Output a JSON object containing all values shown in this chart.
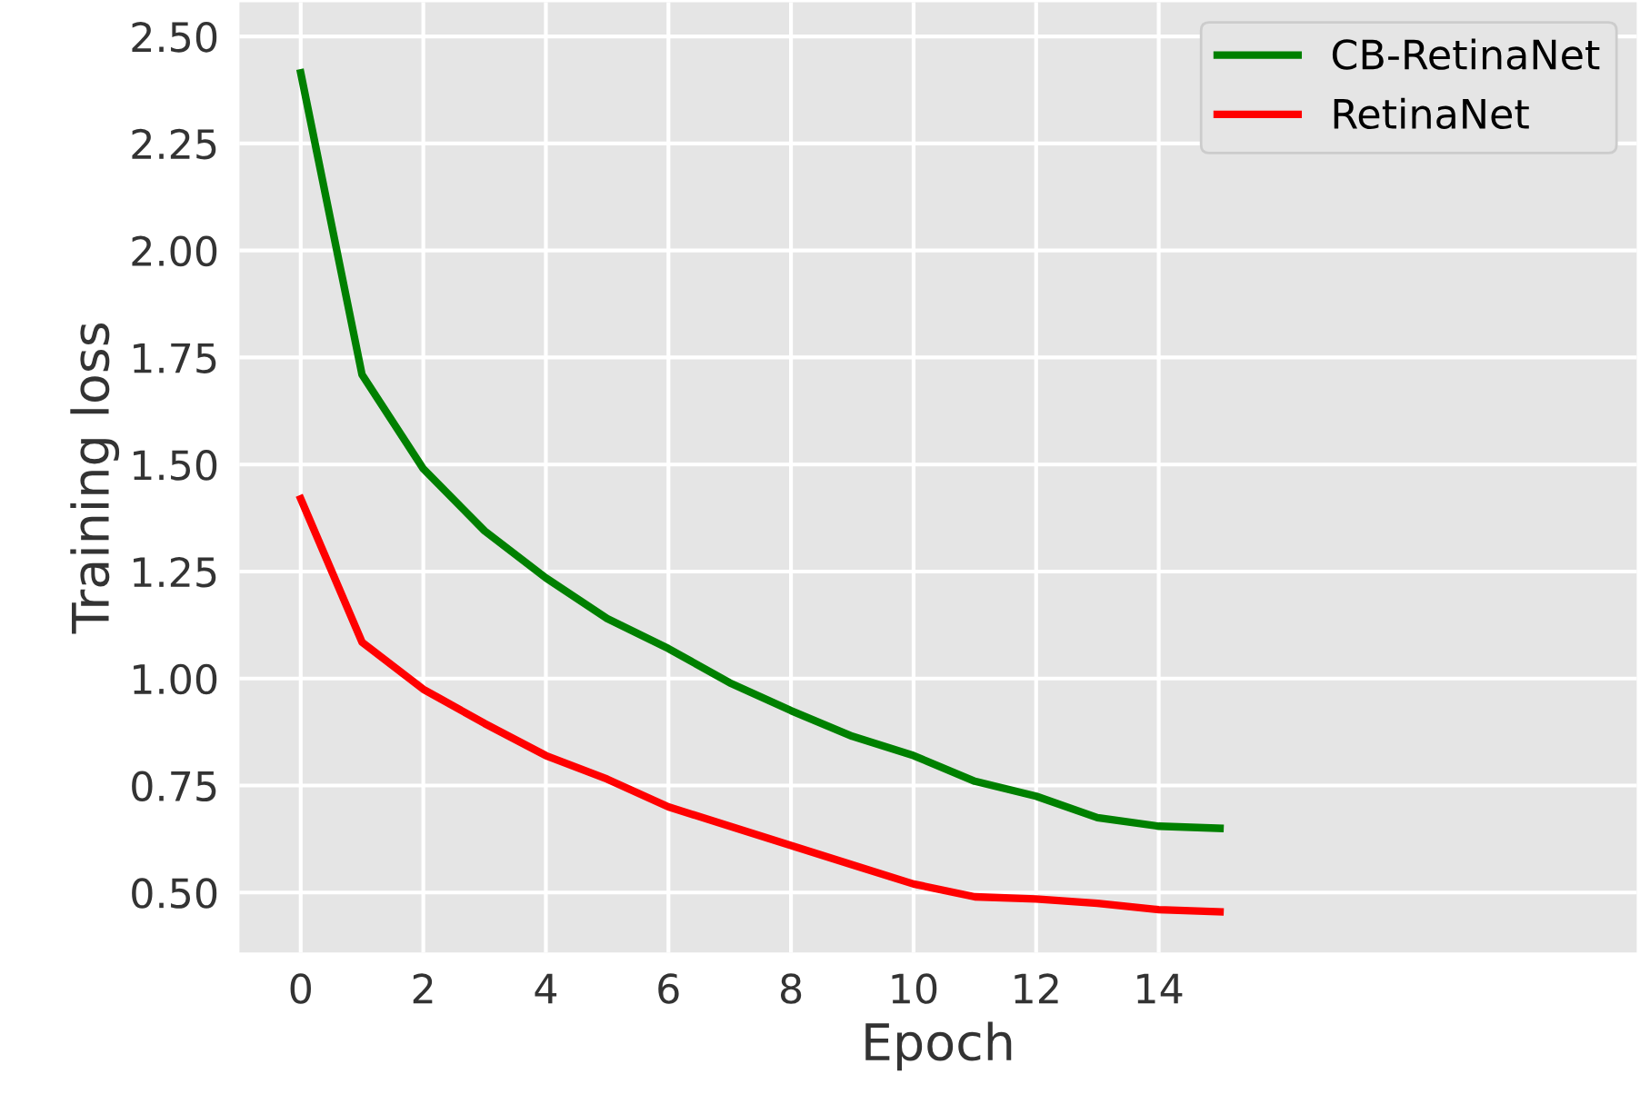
{
  "chart_data": {
    "type": "line",
    "xlabel": "Epoch",
    "ylabel": "Training loss",
    "x": [
      0,
      1,
      2,
      3,
      4,
      5,
      6,
      7,
      8,
      9,
      10,
      11,
      12,
      13,
      14,
      15
    ],
    "series": [
      {
        "name": "CB-RetinaNet",
        "color": "#008000",
        "values": [
          2.415,
          1.71,
          1.49,
          1.345,
          1.235,
          1.14,
          1.07,
          0.99,
          0.925,
          0.865,
          0.82,
          0.76,
          0.725,
          0.675,
          0.655,
          0.65
        ]
      },
      {
        "name": "RetinaNet",
        "color": "#ff0000",
        "values": [
          1.42,
          1.085,
          0.975,
          0.895,
          0.82,
          0.765,
          0.7,
          0.655,
          0.61,
          0.565,
          0.52,
          0.49,
          0.485,
          0.475,
          0.46,
          0.455
        ]
      }
    ],
    "xlim": [
      -1,
      21.8
    ],
    "ylim": [
      0.36,
      2.58
    ],
    "xticks": [
      0,
      2,
      4,
      6,
      8,
      10,
      12,
      14
    ],
    "yticks": [
      {
        "value": 0.5,
        "label": "0.50"
      },
      {
        "value": 0.75,
        "label": "0.75"
      },
      {
        "value": 1.0,
        "label": "1.00"
      },
      {
        "value": 1.25,
        "label": "1.25"
      },
      {
        "value": 1.5,
        "label": "1.50"
      },
      {
        "value": 1.75,
        "label": "1.75"
      },
      {
        "value": 2.0,
        "label": "2.00"
      },
      {
        "value": 2.25,
        "label": "2.25"
      },
      {
        "value": 2.5,
        "label": "2.50"
      }
    ],
    "grid": true,
    "legend": "top right",
    "marker": "none",
    "line_style": "solid"
  }
}
